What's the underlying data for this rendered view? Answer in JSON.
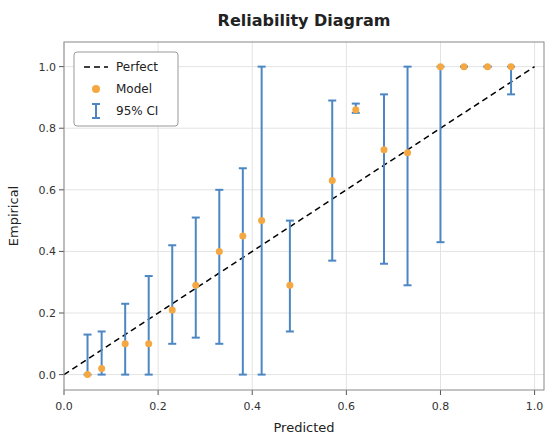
{
  "chart_data": {
    "type": "scatter",
    "title": "Reliability Diagram",
    "x_label": "Predicted",
    "y_label": "Empirical",
    "xlim": [
      0.0,
      1.02
    ],
    "ylim": [
      -0.05,
      1.08
    ],
    "xticks": [
      {
        "value": 0,
        "label": "0.0"
      },
      0.2,
      0.4,
      0.6,
      0.8,
      {
        "value": 1,
        "label": "1.0"
      }
    ],
    "yticks": [
      {
        "value": 0,
        "label": "0.0"
      },
      0.2,
      0.4,
      0.6,
      0.8,
      {
        "value": 1,
        "label": "1.0"
      }
    ],
    "grid": true,
    "legend": "upper left",
    "series": [
      {
        "name": "Perfect",
        "type": "line",
        "color": "black",
        "line_style": "dashed",
        "x": [
          0,
          1
        ],
        "values": [
          0,
          1
        ]
      },
      {
        "name": "Model",
        "type": "scatter",
        "color": "#f5a742",
        "marker": "circle",
        "x": [
          0.05,
          0.08,
          0.13,
          0.18,
          0.23,
          0.28,
          0.33,
          0.38,
          0.42,
          0.48,
          0.57,
          0.62,
          0.68,
          0.73,
          0.8,
          0.85,
          0.9,
          0.95
        ],
        "values": [
          0.0,
          0.02,
          0.1,
          0.1,
          0.21,
          0.29,
          0.4,
          0.45,
          0.5,
          0.29,
          0.63,
          0.86,
          0.73,
          0.72,
          1.0,
          1.0,
          1.0,
          1.0
        ]
      },
      {
        "name": "95% CI",
        "type": "errorbar",
        "color": "#4c87c4",
        "x": [
          0.05,
          0.08,
          0.13,
          0.18,
          0.23,
          0.28,
          0.33,
          0.38,
          0.42,
          0.48,
          0.57,
          0.62,
          0.68,
          0.73,
          0.8,
          0.85,
          0.9,
          0.95
        ],
        "values": [
          0.0,
          0.02,
          0.1,
          0.1,
          0.21,
          0.29,
          0.4,
          0.45,
          0.5,
          0.29,
          0.63,
          0.86,
          0.73,
          0.72,
          1.0,
          1.0,
          1.0,
          1.0
        ],
        "lower": [
          0.0,
          0.0,
          0.0,
          0.0,
          0.1,
          0.12,
          0.1,
          0.0,
          0.0,
          0.14,
          0.37,
          0.85,
          0.36,
          0.29,
          0.43,
          1.0,
          1.0,
          0.91
        ],
        "upper": [
          0.13,
          0.14,
          0.23,
          0.32,
          0.42,
          0.51,
          0.6,
          0.67,
          1.0,
          0.5,
          0.89,
          0.88,
          0.91,
          1.0,
          1.0,
          1.0,
          1.0,
          1.0
        ]
      }
    ]
  }
}
